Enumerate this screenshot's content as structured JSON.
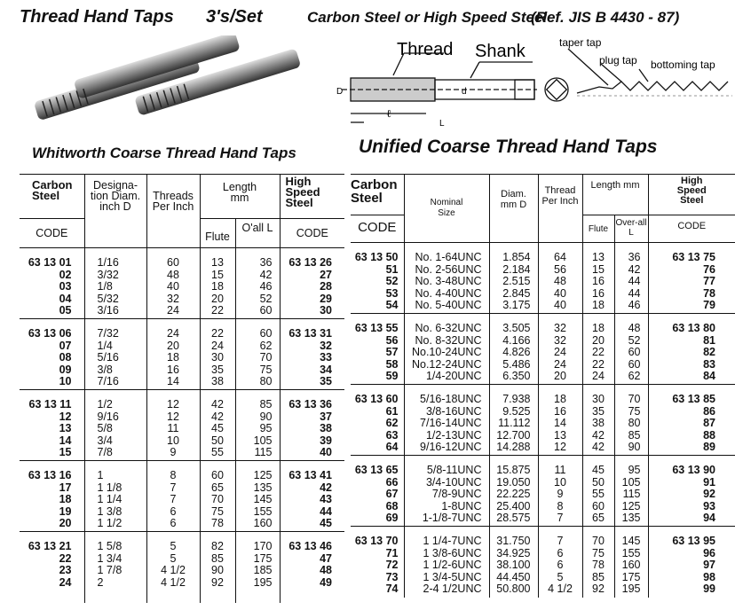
{
  "header": {
    "title": "Thread Hand Taps",
    "per_set": "3's/Set",
    "material": "Carbon Steel or  High Speed Steel",
    "reference": "(Ref. JIS B 4430 - 87)"
  },
  "diagram": {
    "thread": "Thread",
    "shank": "Shank",
    "taper_tap": "taper tap",
    "plug_tap": "plug tap",
    "bottoming_tap": "bottoming tap",
    "dim_D": "D",
    "dim_d": "d",
    "dim_l": "ℓ",
    "dim_L": "L"
  },
  "whitworth": {
    "title": "Whitworth Coarse Thread Hand Taps",
    "headers": {
      "carbon": "Carbon Steel",
      "code": "CODE",
      "designation": "Designa-tion Diam. inch D",
      "threads": "Threads Per Inch",
      "length": "Length mm",
      "flute": "Flute",
      "oall": "O'all L",
      "hss": "High Speed Steel",
      "hss_code": "CODE"
    },
    "groups": [
      [
        [
          "63 13 01",
          "1/16",
          "60",
          "13",
          "36",
          "63 13 26"
        ],
        [
          "02",
          "3/32",
          "48",
          "15",
          "42",
          "27"
        ],
        [
          "03",
          "1/8",
          "40",
          "18",
          "46",
          "28"
        ],
        [
          "04",
          "5/32",
          "32",
          "20",
          "52",
          "29"
        ],
        [
          "05",
          "3/16",
          "24",
          "22",
          "60",
          "30"
        ]
      ],
      [
        [
          "63 13 06",
          "7/32",
          "24",
          "22",
          "60",
          "63 13 31"
        ],
        [
          "07",
          "1/4",
          "20",
          "24",
          "62",
          "32"
        ],
        [
          "08",
          "5/16",
          "18",
          "30",
          "70",
          "33"
        ],
        [
          "09",
          "3/8",
          "16",
          "35",
          "75",
          "34"
        ],
        [
          "10",
          "7/16",
          "14",
          "38",
          "80",
          "35"
        ]
      ],
      [
        [
          "63 13 11",
          "1/2",
          "12",
          "42",
          "85",
          "63 13 36"
        ],
        [
          "12",
          "9/16",
          "12",
          "42",
          "90",
          "37"
        ],
        [
          "13",
          "5/8",
          "11",
          "45",
          "95",
          "38"
        ],
        [
          "14",
          "3/4",
          "10",
          "50",
          "105",
          "39"
        ],
        [
          "15",
          "7/8",
          "9",
          "55",
          "115",
          "40"
        ]
      ],
      [
        [
          "63 13 16",
          "1",
          "8",
          "60",
          "125",
          "63 13 41"
        ],
        [
          "17",
          "1 1/8",
          "7",
          "65",
          "135",
          "42"
        ],
        [
          "18",
          "1 1/4",
          "7",
          "70",
          "145",
          "43"
        ],
        [
          "19",
          "1 3/8",
          "6",
          "75",
          "155",
          "44"
        ],
        [
          "20",
          "1 1/2",
          "6",
          "78",
          "160",
          "45"
        ]
      ],
      [
        [
          "63 13 21",
          "1 5/8",
          "5",
          "82",
          "170",
          "63 13 46"
        ],
        [
          "22",
          "1 3/4",
          "5",
          "85",
          "175",
          "47"
        ],
        [
          "23",
          "1 7/8",
          "4 1/2",
          "90",
          "185",
          "48"
        ],
        [
          "24",
          "2",
          "4 1/2",
          "92",
          "195",
          "49"
        ]
      ]
    ]
  },
  "unified": {
    "title": "Unified Coarse Thread Hand Taps",
    "headers": {
      "carbon": "Carbon Steel",
      "code": "CODE",
      "nominal": "Nominal Size",
      "diam": "Diam. mm D",
      "threads": "Thread Per Inch",
      "length": "Length mm",
      "flute": "Flute",
      "oall": "Over-all L",
      "hss": "High Speed Steel",
      "hss_code": "CODE"
    },
    "groups": [
      [
        [
          "63 13 50",
          "No.  1-64UNC",
          "1.854",
          "64",
          "13",
          "36",
          "63 13 75"
        ],
        [
          "51",
          "No.  2-56UNC",
          "2.184",
          "56",
          "15",
          "42",
          "76"
        ],
        [
          "52",
          "No.  3-48UNC",
          "2.515",
          "48",
          "16",
          "44",
          "77"
        ],
        [
          "53",
          "No.  4-40UNC",
          "2.845",
          "40",
          "16",
          "44",
          "78"
        ],
        [
          "54",
          "No.  5-40UNC",
          "3.175",
          "40",
          "18",
          "46",
          "79"
        ]
      ],
      [
        [
          "63 13 55",
          "No.  6-32UNC",
          "3.505",
          "32",
          "18",
          "48",
          "63 13 80"
        ],
        [
          "56",
          "No.  8-32UNC",
          "4.166",
          "32",
          "20",
          "52",
          "81"
        ],
        [
          "57",
          "No.10-24UNC",
          "4.826",
          "24",
          "22",
          "60",
          "82"
        ],
        [
          "58",
          "No.12-24UNC",
          "5.486",
          "24",
          "22",
          "60",
          "83"
        ],
        [
          "59",
          "1/4-20UNC",
          "6.350",
          "20",
          "24",
          "62",
          "84"
        ]
      ],
      [
        [
          "63 13 60",
          "5/16-18UNC",
          "7.938",
          "18",
          "30",
          "70",
          "63 13 85"
        ],
        [
          "61",
          "3/8-16UNC",
          "9.525",
          "16",
          "35",
          "75",
          "86"
        ],
        [
          "62",
          "7/16-14UNC",
          "11.112",
          "14",
          "38",
          "80",
          "87"
        ],
        [
          "63",
          "1/2-13UNC",
          "12.700",
          "13",
          "42",
          "85",
          "88"
        ],
        [
          "64",
          "9/16-12UNC",
          "14.288",
          "12",
          "42",
          "90",
          "89"
        ]
      ],
      [
        [
          "63 13 65",
          "5/8-11UNC",
          "15.875",
          "11",
          "45",
          "95",
          "63 13 90"
        ],
        [
          "66",
          "3/4-10UNC",
          "19.050",
          "10",
          "50",
          "105",
          "91"
        ],
        [
          "67",
          "7/8-9UNC",
          "22.225",
          "9",
          "55",
          "115",
          "92"
        ],
        [
          "68",
          "1-8UNC",
          "25.400",
          "8",
          "60",
          "125",
          "93"
        ],
        [
          "69",
          "1-1/8-7UNC",
          "28.575",
          "7",
          "65",
          "135",
          "94"
        ]
      ],
      [
        [
          "63 13 70",
          "1 1/4-7UNC",
          "31.750",
          "7",
          "70",
          "145",
          "63 13 95"
        ],
        [
          "71",
          "1 3/8-6UNC",
          "34.925",
          "6",
          "75",
          "155",
          "96"
        ],
        [
          "72",
          "1 1/2-6UNC",
          "38.100",
          "6",
          "78",
          "160",
          "97"
        ],
        [
          "73",
          "1 3/4-5UNC",
          "44.450",
          "5",
          "85",
          "175",
          "98"
        ],
        [
          "74",
          "2-4 1/2UNC",
          "50.800",
          "4 1/2",
          "92",
          "195",
          "99"
        ]
      ]
    ]
  }
}
